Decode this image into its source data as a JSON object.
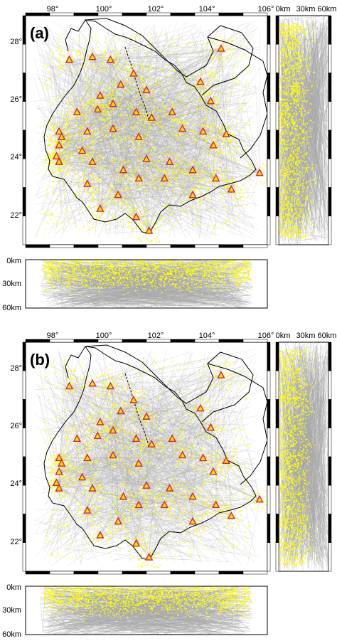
{
  "panels": [
    {
      "id": "a",
      "label": "(a)",
      "lon_ticks": [
        "98°",
        "100°",
        "102°",
        "104°",
        "106°"
      ],
      "lat_ticks": [
        "28°",
        "26°",
        "24°",
        "22°"
      ],
      "depth_ticks": [
        "0km",
        "30km",
        "60km"
      ]
    },
    {
      "id": "b",
      "label": "(b)",
      "lon_ticks": [
        "98°",
        "100°",
        "102°",
        "104°",
        "106°"
      ],
      "lat_ticks": [
        "28°",
        "26°",
        "24°",
        "22°"
      ],
      "depth_ticks": [
        "0km",
        "30km",
        "60km"
      ]
    }
  ],
  "map_extent": {
    "lon": [
      96.6,
      106
    ],
    "lat": [
      21,
      29.3
    ]
  },
  "depth_range_km": [
    0,
    60
  ],
  "stations_lonlat": [
    [
      98.3,
      27.7
    ],
    [
      99.2,
      27.8
    ],
    [
      99.9,
      27.7
    ],
    [
      100.8,
      27.2
    ],
    [
      103.4,
      26.9
    ],
    [
      104.2,
      28.1
    ],
    [
      100.3,
      26.8
    ],
    [
      101.3,
      26.6
    ],
    [
      99.5,
      26.4
    ],
    [
      100.0,
      26.1
    ],
    [
      98.6,
      25.8
    ],
    [
      99.4,
      25.9
    ],
    [
      100.9,
      25.8
    ],
    [
      101.5,
      25.6
    ],
    [
      102.3,
      25.8
    ],
    [
      102.7,
      25.2
    ],
    [
      103.5,
      25.1
    ],
    [
      104.4,
      25.0
    ],
    [
      100.0,
      25.2
    ],
    [
      101.0,
      24.9
    ],
    [
      99.0,
      25.1
    ],
    [
      97.9,
      25.1
    ],
    [
      97.9,
      24.6
    ],
    [
      98.8,
      24.4
    ],
    [
      97.8,
      24.2
    ],
    [
      97.9,
      24.0
    ],
    [
      99.2,
      24.0
    ],
    [
      100.4,
      23.7
    ],
    [
      101.3,
      24.1
    ],
    [
      102.2,
      24.0
    ],
    [
      103.1,
      23.7
    ],
    [
      104.0,
      23.4
    ],
    [
      105.7,
      23.6
    ],
    [
      102.0,
      23.4
    ],
    [
      101.0,
      23.4
    ],
    [
      99.0,
      23.2
    ],
    [
      100.2,
      22.8
    ],
    [
      103.1,
      22.8
    ],
    [
      104.6,
      23.0
    ],
    [
      99.5,
      22.3
    ],
    [
      100.9,
      22.0
    ],
    [
      101.4,
      21.5
    ],
    [
      103.9,
      24.6
    ],
    [
      103.8,
      26.2
    ],
    [
      98.0,
      24.9
    ]
  ],
  "colors": {
    "station_fill": "#f2e012",
    "station_edge": "#d62728",
    "event": "#ffff00",
    "ray": "#a8a8a8",
    "border": "#000000",
    "frame": "#000000"
  }
}
